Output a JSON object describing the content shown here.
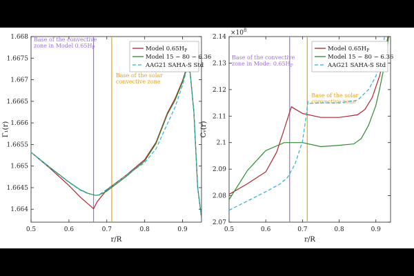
{
  "chart_data": [
    {
      "type": "line",
      "xlabel": "r/R",
      "ylabel": "Γ₁(r)",
      "xlim": [
        0.5,
        0.95
      ],
      "ylim": [
        1.6637,
        1.668
      ],
      "x_ticks": [
        "0.5",
        "0.6",
        "0.7",
        "0.8",
        "0.9"
      ],
      "y_ticks": [
        "1.664",
        "1.6645",
        "1.665",
        "1.6655",
        "1.666",
        "1.6665",
        "1.667",
        "1.6675",
        "1.668"
      ],
      "legend_position": "top-right",
      "annotations": [
        {
          "x": 0.665,
          "color": "#9b6fe0",
          "lines": [
            "Base of the convective",
            "zone in Model 0.65H",
            "P"
          ]
        },
        {
          "x": 0.713,
          "color": "#e3a21a",
          "lines": [
            "Base of the solar",
            "convective zone"
          ]
        }
      ],
      "series": [
        {
          "name": "Model 0.65H",
          "name_sub": "P",
          "color": "#b2212b",
          "dash": "",
          "x": [
            0.5,
            0.55,
            0.6,
            0.63,
            0.66,
            0.665,
            0.675,
            0.7,
            0.75,
            0.8,
            0.83,
            0.86,
            0.88,
            0.9,
            0.91,
            0.92,
            0.93,
            0.94,
            0.95
          ],
          "y": [
            1.66532,
            1.66495,
            1.66455,
            1.66428,
            1.66405,
            1.66401,
            1.66418,
            1.66445,
            1.66478,
            1.66515,
            1.66555,
            1.66623,
            1.66656,
            1.66698,
            1.66725,
            1.66718,
            1.66625,
            1.6645,
            1.6638
          ]
        },
        {
          "name": "Model 15 − 80 − 6.36",
          "color": "#2e8a2e",
          "dash": "",
          "x": [
            0.5,
            0.55,
            0.6,
            0.63,
            0.65,
            0.67,
            0.68,
            0.7,
            0.75,
            0.8,
            0.83,
            0.86,
            0.88,
            0.9,
            0.91,
            0.92,
            0.93,
            0.94,
            0.95
          ],
          "y": [
            1.66532,
            1.66497,
            1.66463,
            1.66445,
            1.66437,
            1.66432,
            1.66433,
            1.66442,
            1.66475,
            1.66512,
            1.66552,
            1.6662,
            1.66652,
            1.66695,
            1.66723,
            1.66717,
            1.66625,
            1.6645,
            1.6638
          ]
        },
        {
          "name": "AAG21 SAHA-S Std",
          "color": "#2ab0d8",
          "dash": "5,3",
          "x": [
            0.5,
            0.55,
            0.6,
            0.63,
            0.65,
            0.67,
            0.68,
            0.7,
            0.75,
            0.8,
            0.83,
            0.86,
            0.88,
            0.9,
            0.91,
            0.92,
            0.93,
            0.94,
            0.95
          ],
          "y": [
            1.66532,
            1.66496,
            1.66462,
            1.66444,
            1.66436,
            1.66432,
            1.66434,
            1.66446,
            1.66478,
            1.66508,
            1.6654,
            1.66598,
            1.66636,
            1.66688,
            1.6672,
            1.66716,
            1.66624,
            1.6645,
            1.6638
          ]
        }
      ]
    },
    {
      "type": "line",
      "xlabel": "r/R",
      "ylabel": "Cᵥ(r)",
      "y_multiplier": "×10",
      "y_multiplier_exp": "8",
      "xlim": [
        0.5,
        0.94
      ],
      "ylim": [
        2.07,
        2.14
      ],
      "x_ticks": [
        "0.5",
        "0.6",
        "0.7",
        "0.8",
        "0.9"
      ],
      "y_ticks": [
        "2.07",
        "2.08",
        "2.09",
        "2.1",
        "2.11",
        "2.12",
        "2.13",
        "2.14"
      ],
      "legend_position": "top-right",
      "annotations": [
        {
          "x": 0.665,
          "color": "#9b6fe0",
          "lines": [
            "Base of the convective",
            "zone in Mode: 0.65H",
            "P"
          ]
        },
        {
          "x": 0.713,
          "color": "#e3a21a",
          "lines": [
            "Base of the solar",
            "convective zone"
          ]
        }
      ],
      "series": [
        {
          "name": "Model 0.65H",
          "name_sub": "P",
          "color": "#b2212b",
          "dash": "",
          "x": [
            0.5,
            0.55,
            0.6,
            0.63,
            0.65,
            0.665,
            0.67,
            0.7,
            0.75,
            0.8,
            0.85,
            0.87,
            0.89,
            0.91,
            0.92,
            0.93,
            0.94
          ],
          "y": [
            2.0805,
            2.0845,
            2.089,
            2.0965,
            2.105,
            2.1115,
            2.1135,
            2.111,
            2.1095,
            2.1095,
            2.1105,
            2.1125,
            2.117,
            2.125,
            2.131,
            2.138,
            2.145
          ]
        },
        {
          "name": "Model 15 − 80 − 6.36",
          "color": "#2e8a2e",
          "dash": "",
          "x": [
            0.5,
            0.55,
            0.6,
            0.65,
            0.7,
            0.75,
            0.8,
            0.84,
            0.86,
            0.88,
            0.9,
            0.91,
            0.92,
            0.93,
            0.94
          ],
          "y": [
            2.0785,
            2.0895,
            2.097,
            2.1,
            2.1,
            2.0985,
            2.099,
            2.0995,
            2.1015,
            2.1065,
            2.114,
            2.12,
            2.127,
            2.135,
            2.145
          ]
        },
        {
          "name": "AAG21 SAHA-S Std",
          "color": "#2ab0d8",
          "dash": "5,3",
          "x": [
            0.5,
            0.55,
            0.6,
            0.64,
            0.66,
            0.68,
            0.7,
            0.71,
            0.715,
            0.72,
            0.75,
            0.8,
            0.85,
            0.88,
            0.9,
            0.91,
            0.92,
            0.93
          ],
          "y": [
            2.0745,
            2.078,
            2.0815,
            2.0845,
            2.087,
            2.092,
            2.1005,
            2.11,
            2.1155,
            2.1148,
            2.115,
            2.115,
            2.116,
            2.12,
            2.125,
            2.13,
            2.137,
            2.145
          ]
        }
      ]
    }
  ]
}
